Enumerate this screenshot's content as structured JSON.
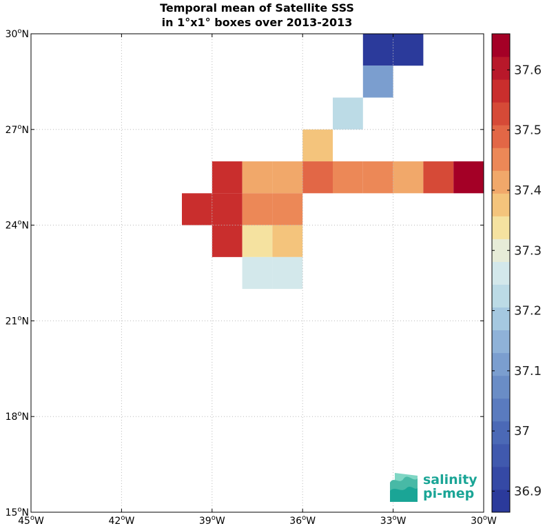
{
  "title_line1": "Temporal mean of Satellite SSS",
  "title_line2": "in 1°x1° boxes over 2013-2013",
  "logo": {
    "line1": "salinity",
    "line2": "pi-mep"
  },
  "chart_data": {
    "type": "heatmap",
    "title": "Temporal mean of Satellite SSS in 1°x1° boxes over 2013-2013",
    "xlim": [
      -45,
      -30
    ],
    "ylim": [
      15,
      30
    ],
    "x_ticks": [
      {
        "value": -45,
        "deg": "45",
        "hemi": "W"
      },
      {
        "value": -42,
        "deg": "42",
        "hemi": "W"
      },
      {
        "value": -39,
        "deg": "39",
        "hemi": "W"
      },
      {
        "value": -36,
        "deg": "36",
        "hemi": "W"
      },
      {
        "value": -33,
        "deg": "33",
        "hemi": "W"
      },
      {
        "value": -30,
        "deg": "30",
        "hemi": "W"
      }
    ],
    "y_ticks": [
      {
        "value": 30,
        "deg": "30",
        "hemi": "N"
      },
      {
        "value": 27,
        "deg": "27",
        "hemi": "N"
      },
      {
        "value": 24,
        "deg": "24",
        "hemi": "N"
      },
      {
        "value": 21,
        "deg": "21",
        "hemi": "N"
      },
      {
        "value": 18,
        "deg": "18",
        "hemi": "N"
      },
      {
        "value": 15,
        "deg": "15",
        "hemi": "N"
      }
    ],
    "grid": true,
    "colorbar": {
      "min": 36.865,
      "max": 37.66,
      "ticks": [
        "36.9",
        "37",
        "37.1",
        "37.2",
        "37.3",
        "37.4",
        "37.5",
        "37.6"
      ],
      "tick_values": [
        36.9,
        37.0,
        37.1,
        37.2,
        37.3,
        37.4,
        37.5,
        37.6
      ],
      "colors": [
        "#2b3a9b",
        "#3549a5",
        "#4059ae",
        "#4b69b6",
        "#5a7bbf",
        "#6a8dc6",
        "#7b9ecf",
        "#8fb2d8",
        "#a5c8e0",
        "#bcdbe6",
        "#d3e8eb",
        "#e7ecd8",
        "#f5e2a0",
        "#f4c47c",
        "#f1a86a",
        "#ec8857",
        "#e26746",
        "#d64a37",
        "#c92e2d",
        "#b8182a",
        "#a40026"
      ]
    },
    "cells": [
      {
        "lon": -34,
        "lat": 29,
        "value": 36.89
      },
      {
        "lon": -33,
        "lat": 29,
        "value": 36.89
      },
      {
        "lon": -34,
        "lat": 28,
        "value": 37.1
      },
      {
        "lon": -35,
        "lat": 27,
        "value": 37.21
      },
      {
        "lon": -36,
        "lat": 26,
        "value": 37.37
      },
      {
        "lon": -39,
        "lat": 25,
        "value": 37.55
      },
      {
        "lon": -38,
        "lat": 25,
        "value": 37.42
      },
      {
        "lon": -37,
        "lat": 25,
        "value": 37.42
      },
      {
        "lon": -36,
        "lat": 25,
        "value": 37.49
      },
      {
        "lon": -35,
        "lat": 25,
        "value": 37.46
      },
      {
        "lon": -34,
        "lat": 25,
        "value": 37.46
      },
      {
        "lon": -33,
        "lat": 25,
        "value": 37.42
      },
      {
        "lon": -32,
        "lat": 25,
        "value": 37.52
      },
      {
        "lon": -31,
        "lat": 25,
        "value": 37.64
      },
      {
        "lon": -40,
        "lat": 24,
        "value": 37.58
      },
      {
        "lon": -39,
        "lat": 24,
        "value": 37.58
      },
      {
        "lon": -38,
        "lat": 24,
        "value": 37.46
      },
      {
        "lon": -37,
        "lat": 24,
        "value": 37.46
      },
      {
        "lon": -39,
        "lat": 23,
        "value": 37.55
      },
      {
        "lon": -38,
        "lat": 23,
        "value": 37.32
      },
      {
        "lon": -37,
        "lat": 23,
        "value": 37.37
      },
      {
        "lon": -38,
        "lat": 22,
        "value": 37.28
      },
      {
        "lon": -37,
        "lat": 22,
        "value": 37.25
      }
    ]
  }
}
